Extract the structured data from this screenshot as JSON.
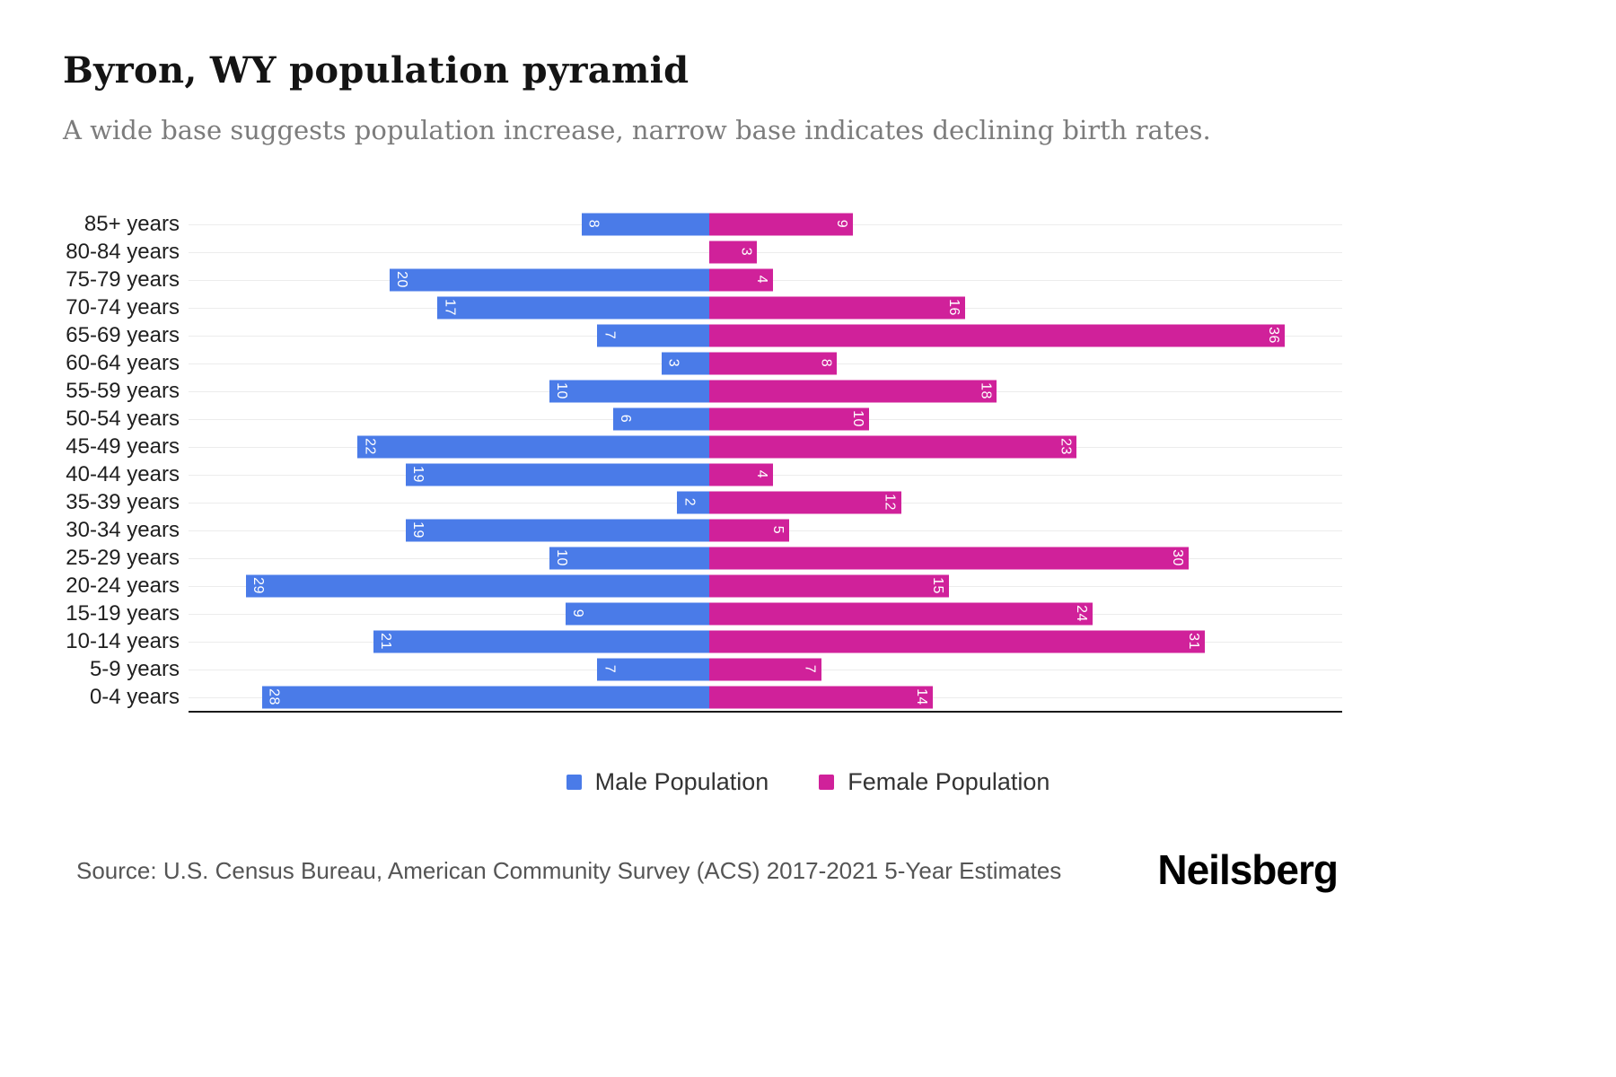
{
  "header": {
    "title": "Byron, WY population pyramid",
    "subtitle": "A wide base suggests population increase, narrow base indicates declining birth rates."
  },
  "chart_data": {
    "type": "bar",
    "variant": "population-pyramid",
    "orientation": "horizontal",
    "grid": true,
    "legend_position": "bottom",
    "value_axis_max": 36,
    "bar_label_color": "#ffffff",
    "categories": [
      "85+ years",
      "80-84 years",
      "75-79 years",
      "70-74 years",
      "65-69 years",
      "60-64 years",
      "55-59 years",
      "50-54 years",
      "45-49 years",
      "40-44 years",
      "35-39 years",
      "30-34 years",
      "25-29 years",
      "20-24 years",
      "15-19 years",
      "10-14 years",
      "5-9 years",
      "0-4 years"
    ],
    "series": [
      {
        "name": "Male Population",
        "color": "#4A7BE8",
        "direction": "left",
        "values": [
          8,
          0,
          20,
          17,
          7,
          3,
          10,
          6,
          22,
          19,
          2,
          19,
          10,
          29,
          9,
          21,
          7,
          28
        ]
      },
      {
        "name": "Female Population",
        "color": "#D0219A",
        "direction": "right",
        "values": [
          9,
          3,
          4,
          16,
          36,
          8,
          18,
          10,
          23,
          4,
          12,
          5,
          30,
          15,
          24,
          31,
          7,
          14
        ]
      }
    ]
  },
  "footer": {
    "source": "Source: U.S. Census Bureau, American Community Survey (ACS) 2017-2021 5-Year Estimates",
    "brand": "Neilsberg"
  }
}
